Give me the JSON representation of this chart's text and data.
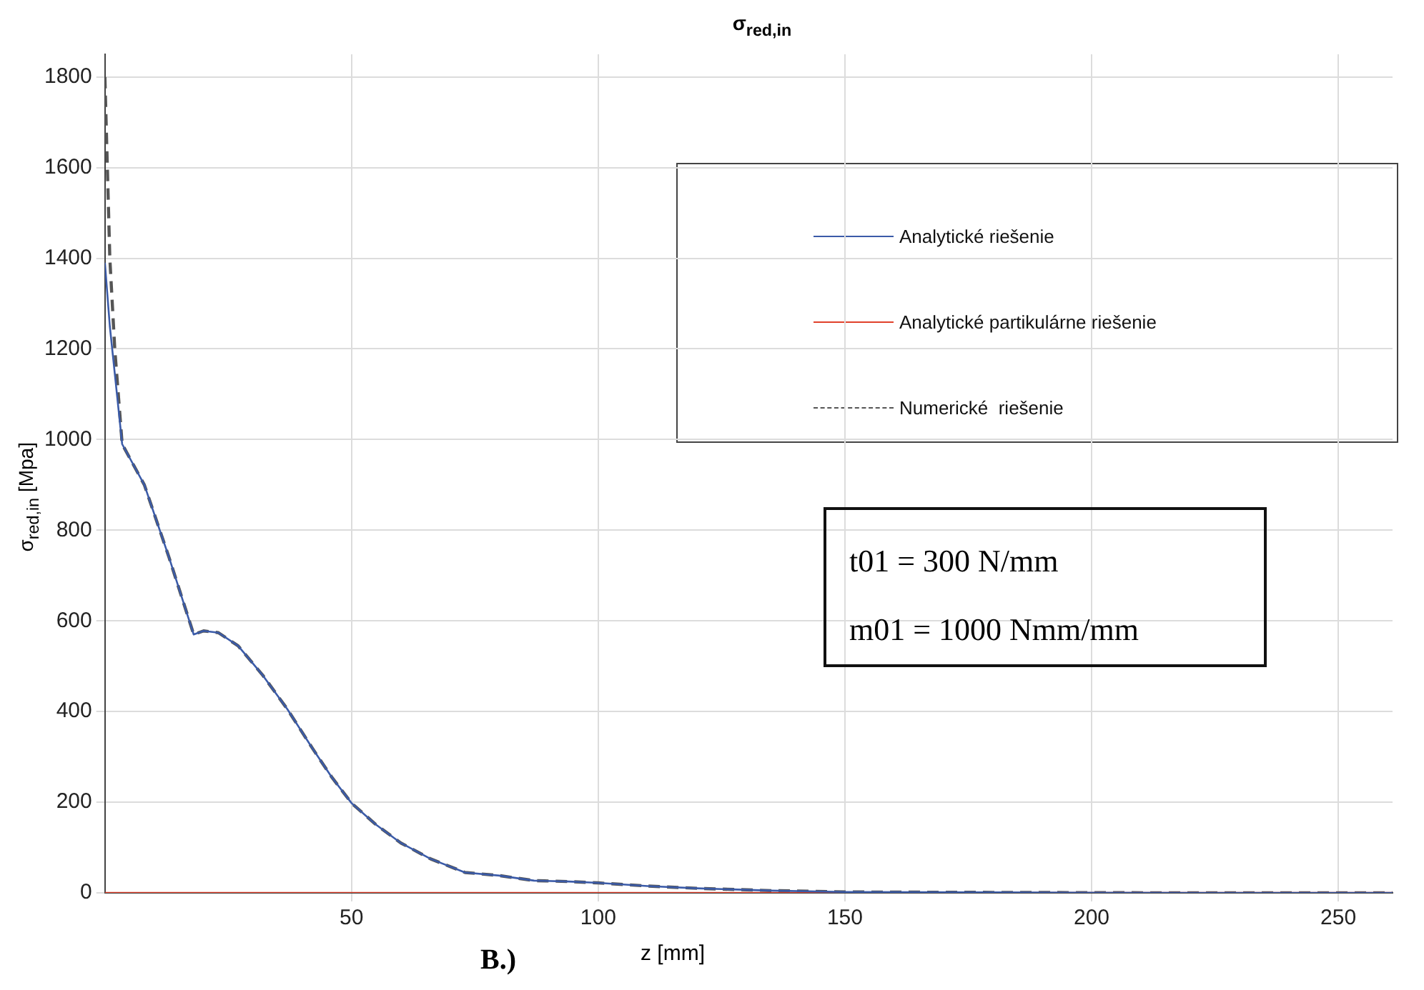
{
  "chart_data": {
    "type": "line",
    "title": "σ$_{red,in}$",
    "xlabel": "z [mm]",
    "ylabel": "σ$_{red,in}$ [Mpa]",
    "xlim": [
      0,
      261
    ],
    "xticks": [
      50,
      100,
      150,
      200,
      250
    ],
    "ylim": [
      0,
      1850
    ],
    "yticks": [
      0,
      200,
      400,
      600,
      800,
      1000,
      1200,
      1400,
      1600,
      1800
    ],
    "grid": true,
    "legend": "top right",
    "marker": "none",
    "series": [
      {
        "name": "Analytické riešenie",
        "color": "#3b5ba8",
        "line_style": "solid",
        "x": [
          0,
          1,
          3.5,
          8,
          13,
          18,
          20,
          23,
          27,
          32,
          37,
          42,
          46,
          50,
          55,
          60,
          66,
          73,
          80,
          87,
          94,
          100,
          110,
          120,
          135,
          150,
          180,
          220,
          261
        ],
        "values": [
          1390,
          1250,
          990,
          900,
          740,
          570,
          578,
          574,
          545,
          480,
          405,
          320,
          255,
          198,
          150,
          110,
          75,
          45,
          38,
          27,
          25,
          22,
          15,
          10,
          5,
          2,
          1,
          0,
          0
        ]
      },
      {
        "name": "Analytické partikulárne riešenie",
        "color": "#e0402a",
        "line_style": "solid",
        "x": [
          0,
          261
        ],
        "values": [
          0,
          0
        ]
      },
      {
        "name": "Numerické  riešenie",
        "color": "#555555",
        "line_style": "dashed",
        "x": [
          0,
          0.5,
          1,
          2,
          3.5,
          8,
          13,
          18,
          20,
          23,
          27,
          32,
          37,
          42,
          46,
          50,
          55,
          60,
          66,
          73,
          80,
          87,
          94,
          100,
          110,
          120,
          135,
          150,
          180,
          220,
          261
        ],
        "values": [
          1800,
          1600,
          1400,
          1200,
          990,
          900,
          740,
          570,
          578,
          574,
          545,
          480,
          405,
          320,
          255,
          198,
          150,
          110,
          75,
          45,
          38,
          27,
          25,
          22,
          15,
          10,
          5,
          2,
          1,
          0,
          0
        ]
      }
    ],
    "annotations": [
      "t01 = 300 N/mm",
      "m01 = 1000 Nmm/mm",
      "B.)"
    ]
  }
}
